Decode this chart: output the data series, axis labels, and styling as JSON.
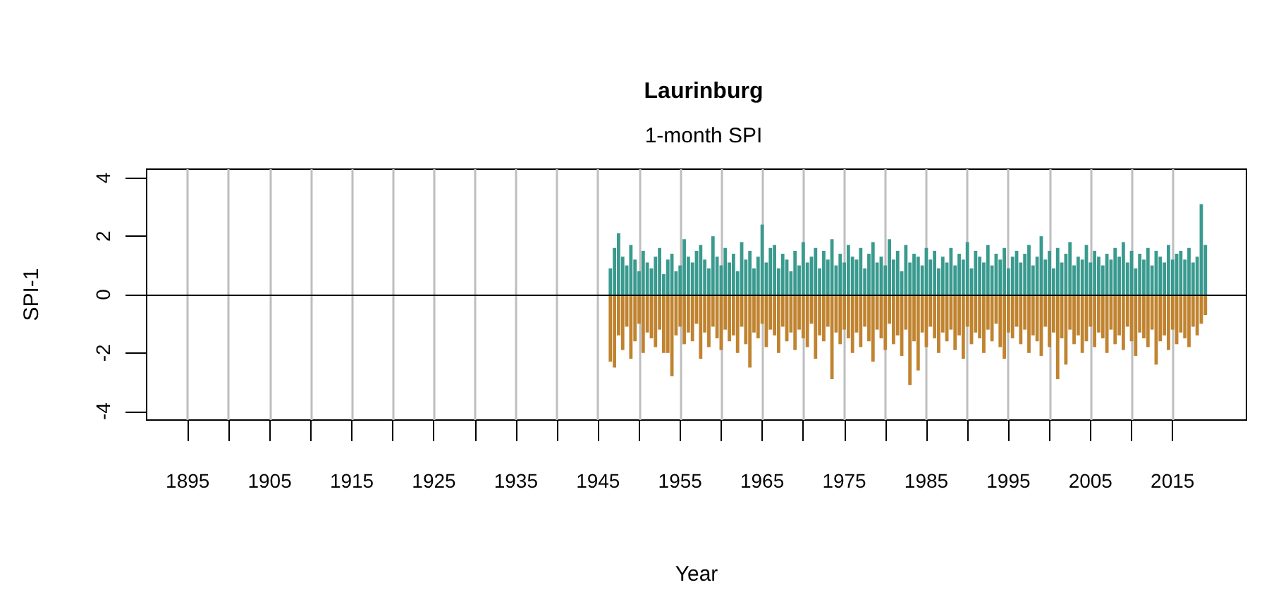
{
  "chart_data": {
    "type": "bar",
    "title": "Laurinburg",
    "subtitle": "1-month SPI",
    "xlabel": "Year",
    "ylabel": "SPI-1",
    "xlim": [
      1890,
      2024
    ],
    "ylim": [
      -4.3,
      4.3
    ],
    "xticks": [
      1895,
      {
        "value": 1900,
        "label": null
      },
      1905,
      {
        "value": 1910,
        "label": null
      },
      1915,
      {
        "value": 1920,
        "label": null
      },
      1925,
      {
        "value": 1930,
        "label": null
      },
      1935,
      {
        "value": 1940,
        "label": null
      },
      1945,
      {
        "value": 1950,
        "label": null
      },
      1955,
      {
        "value": 1960,
        "label": null
      },
      1965,
      {
        "value": 1970,
        "label": null
      },
      1975,
      {
        "value": 1980,
        "label": null
      },
      1985,
      {
        "value": 1990,
        "label": null
      },
      1995,
      {
        "value": 2000,
        "label": null
      },
      2005,
      {
        "value": 2010,
        "label": null
      },
      2015
    ],
    "yticks": [
      -4,
      -2,
      0,
      2,
      4
    ],
    "grid": "x",
    "stacked": true,
    "ref_lines": [
      {
        "axis": "y",
        "value": 0,
        "color": "#000000"
      }
    ],
    "x": [
      1946.5,
      1947,
      1947.5,
      1948,
      1948.5,
      1949,
      1949.5,
      1950,
      1950.5,
      1951,
      1951.5,
      1952,
      1952.5,
      1953,
      1953.5,
      1954,
      1954.5,
      1955,
      1955.5,
      1956,
      1956.5,
      1957,
      1957.5,
      1958,
      1958.5,
      1959,
      1959.5,
      1960,
      1960.5,
      1961,
      1961.5,
      1962,
      1962.5,
      1963,
      1963.5,
      1964,
      1964.5,
      1965,
      1965.5,
      1966,
      1966.5,
      1967,
      1967.5,
      1968,
      1968.5,
      1969,
      1969.5,
      1970,
      1970.5,
      1971,
      1971.5,
      1972,
      1972.5,
      1973,
      1973.5,
      1974,
      1974.5,
      1975,
      1975.5,
      1976,
      1976.5,
      1977,
      1977.5,
      1978,
      1978.5,
      1979,
      1979.5,
      1980,
      1980.5,
      1981,
      1981.5,
      1982,
      1982.5,
      1983,
      1983.5,
      1984,
      1984.5,
      1985,
      1985.5,
      1986,
      1986.5,
      1987,
      1987.5,
      1988,
      1988.5,
      1989,
      1989.5,
      1990,
      1990.5,
      1991,
      1991.5,
      1992,
      1992.5,
      1993,
      1993.5,
      1994,
      1994.5,
      1995,
      1995.5,
      1996,
      1996.5,
      1997,
      1997.5,
      1998,
      1998.5,
      1999,
      1999.5,
      2000,
      2000.5,
      2001,
      2001.5,
      2002,
      2002.5,
      2003,
      2003.5,
      2004,
      2004.5,
      2005,
      2005.5,
      2006,
      2006.5,
      2007,
      2007.5,
      2008,
      2008.5,
      2009,
      2009.5,
      2010,
      2010.5,
      2011,
      2011.5,
      2012,
      2012.5,
      2013,
      2013.5,
      2014,
      2014.5,
      2015,
      2015.5,
      2016,
      2016.5,
      2017,
      2017.5,
      2018,
      2018.5,
      2019
    ],
    "series": [
      {
        "color": "#3a9a8f",
        "values": [
          0.9,
          1.6,
          2.1,
          1.3,
          1.0,
          1.7,
          1.2,
          0.8,
          1.5,
          1.1,
          0.9,
          1.3,
          1.6,
          0.7,
          1.2,
          1.4,
          0.8,
          1.0,
          1.9,
          1.3,
          1.1,
          1.5,
          1.7,
          1.2,
          0.9,
          2.0,
          1.3,
          1.0,
          1.6,
          1.1,
          1.4,
          0.8,
          1.8,
          1.2,
          1.5,
          0.9,
          1.3,
          2.4,
          1.1,
          1.6,
          1.7,
          0.9,
          1.4,
          1.2,
          0.8,
          1.5,
          1.0,
          1.8,
          1.1,
          1.3,
          1.6,
          0.9,
          1.5,
          1.2,
          1.9,
          1.0,
          1.4,
          1.1,
          1.7,
          1.3,
          1.2,
          1.6,
          0.9,
          1.4,
          1.8,
          1.1,
          1.3,
          1.0,
          1.9,
          1.2,
          1.5,
          0.8,
          1.7,
          1.1,
          1.4,
          1.3,
          1.0,
          1.6,
          1.2,
          1.5,
          0.9,
          1.3,
          1.1,
          1.6,
          1.0,
          1.4,
          1.2,
          1.8,
          0.9,
          1.5,
          1.3,
          1.1,
          1.7,
          1.0,
          1.4,
          1.2,
          1.6,
          0.9,
          1.3,
          1.5,
          1.1,
          1.4,
          1.7,
          1.0,
          1.3,
          2.0,
          1.2,
          1.5,
          0.9,
          1.6,
          1.1,
          1.4,
          1.8,
          1.0,
          1.3,
          1.2,
          1.7,
          1.1,
          1.5,
          1.3,
          1.0,
          1.4,
          1.2,
          1.6,
          1.3,
          1.8,
          1.1,
          1.5,
          0.9,
          1.4,
          1.2,
          1.6,
          1.0,
          1.5,
          1.3,
          1.1,
          1.7,
          1.2,
          1.4,
          1.5,
          1.2,
          1.6,
          1.1,
          1.3,
          3.1,
          1.7
        ]
      },
      {
        "color": "#c0832f",
        "values": [
          -2.3,
          -2.5,
          -1.4,
          -1.9,
          -1.1,
          -2.2,
          -1.6,
          -1.0,
          -2.0,
          -1.3,
          -1.5,
          -1.8,
          -1.2,
          -2.0,
          -2.0,
          -2.8,
          -1.4,
          -1.1,
          -1.7,
          -1.3,
          -1.6,
          -1.0,
          -2.2,
          -1.3,
          -1.8,
          -1.1,
          -1.5,
          -1.9,
          -1.2,
          -1.6,
          -1.4,
          -2.0,
          -1.1,
          -1.7,
          -2.5,
          -1.3,
          -1.5,
          -1.0,
          -1.8,
          -1.2,
          -1.4,
          -2.0,
          -1.1,
          -1.6,
          -1.3,
          -1.9,
          -1.2,
          -1.5,
          -1.8,
          -1.0,
          -2.2,
          -1.4,
          -1.6,
          -1.1,
          -2.9,
          -1.3,
          -1.7,
          -1.2,
          -1.5,
          -2.0,
          -1.3,
          -1.8,
          -1.1,
          -1.6,
          -2.3,
          -1.2,
          -1.5,
          -1.9,
          -1.0,
          -1.7,
          -1.4,
          -2.1,
          -1.2,
          -3.1,
          -1.6,
          -2.6,
          -1.3,
          -1.8,
          -1.1,
          -1.5,
          -2.0,
          -1.3,
          -1.6,
          -1.2,
          -1.9,
          -1.4,
          -2.2,
          -1.1,
          -1.7,
          -1.3,
          -1.5,
          -2.0,
          -1.2,
          -1.6,
          -1.0,
          -1.8,
          -2.2,
          -1.3,
          -1.5,
          -1.1,
          -1.7,
          -1.2,
          -2.0,
          -1.4,
          -1.6,
          -2.1,
          -1.1,
          -1.8,
          -1.3,
          -2.9,
          -1.5,
          -2.4,
          -1.2,
          -1.7,
          -1.4,
          -2.0,
          -1.6,
          -1.1,
          -1.8,
          -1.3,
          -1.5,
          -2.0,
          -1.2,
          -1.7,
          -1.4,
          -1.9,
          -1.1,
          -1.6,
          -2.1,
          -1.3,
          -1.5,
          -1.8,
          -1.2,
          -2.4,
          -1.6,
          -1.4,
          -1.9,
          -1.2,
          -1.7,
          -1.3,
          -1.5,
          -1.8,
          -1.1,
          -1.4,
          -1.0,
          -0.7
        ]
      }
    ]
  }
}
